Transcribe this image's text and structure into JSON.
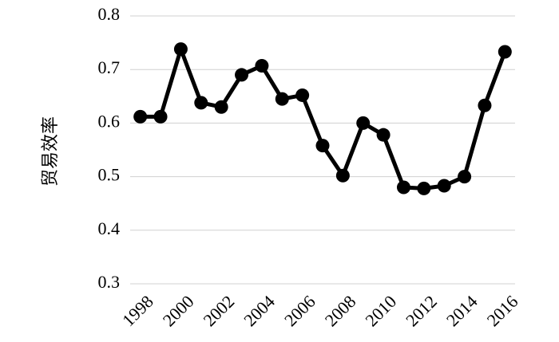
{
  "chart_data": {
    "type": "line",
    "y_label": "贸易效率",
    "x": [
      1998,
      1999,
      2000,
      2001,
      2002,
      2003,
      2004,
      2005,
      2006,
      2007,
      2008,
      2009,
      2010,
      2011,
      2012,
      2013,
      2014,
      2015,
      2016
    ],
    "series": [
      {
        "color": "#000000",
        "values": [
          0.612,
          0.612,
          0.738,
          0.638,
          0.63,
          0.69,
          0.707,
          0.645,
          0.652,
          0.558,
          0.502,
          0.6,
          0.578,
          0.48,
          0.478,
          0.483,
          0.5,
          0.633,
          0.733
        ]
      }
    ],
    "xlim": [
      1997.5,
      2016.5
    ],
    "xticks": [
      1998,
      2000,
      2002,
      2004,
      2006,
      2008,
      2010,
      2012,
      2014,
      2016
    ],
    "ylim": [
      0.3,
      0.8
    ],
    "yticks": [
      0.3,
      0.4,
      0.5,
      0.6,
      0.7,
      0.8
    ],
    "grid": true
  }
}
